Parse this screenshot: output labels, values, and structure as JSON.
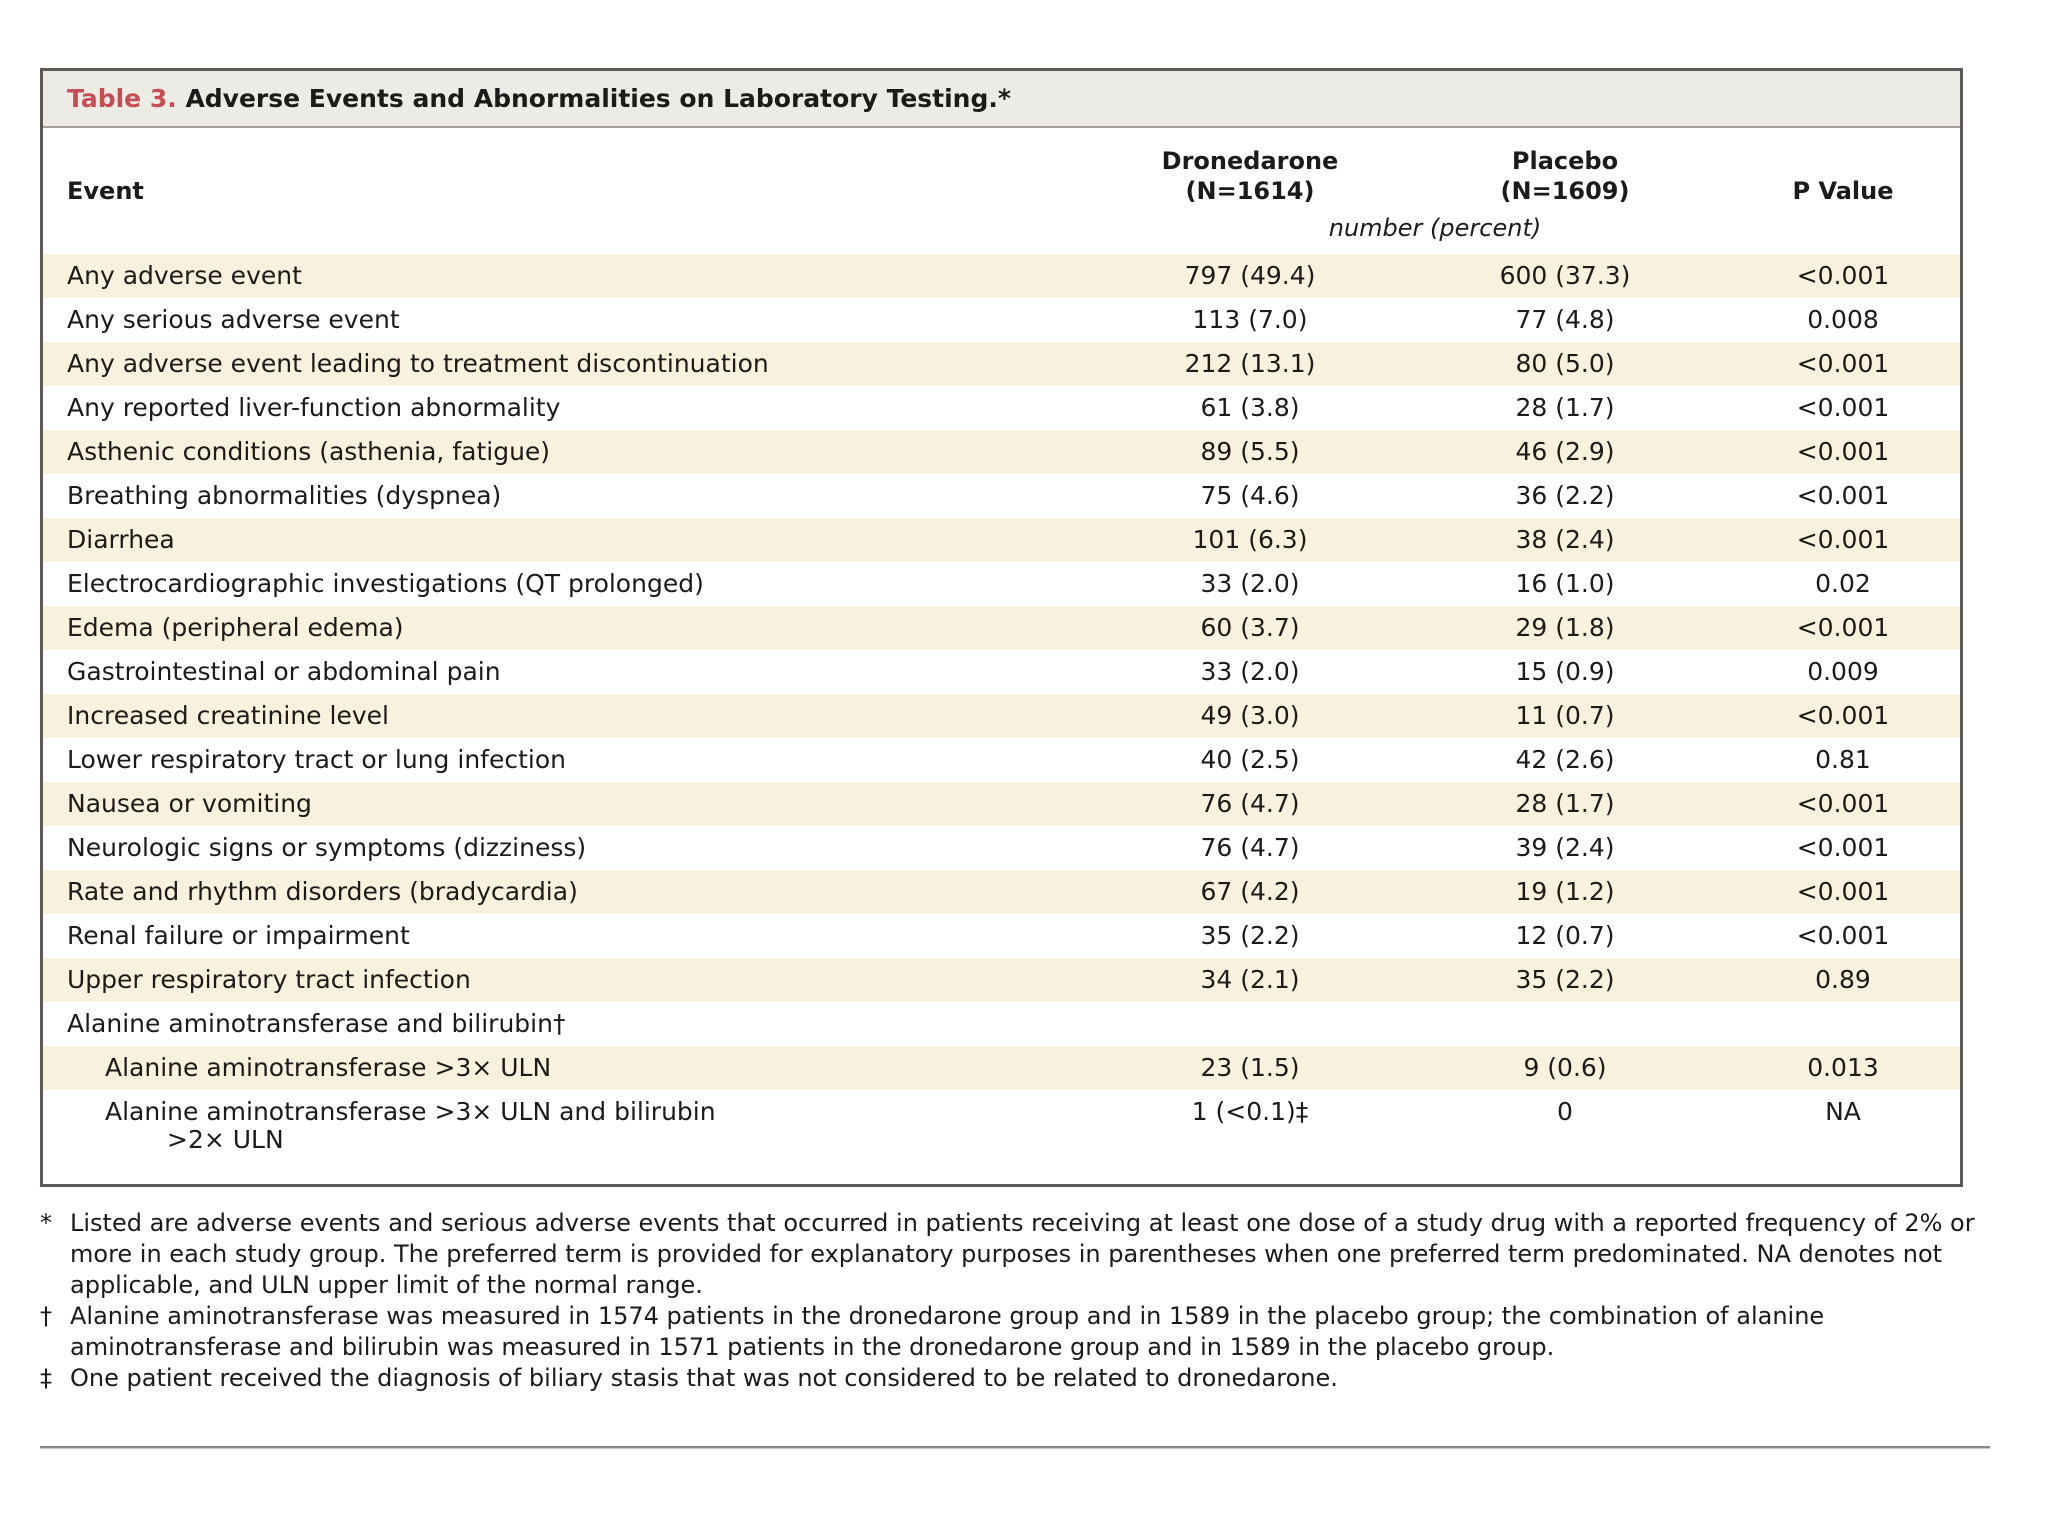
{
  "table": {
    "title_label": "Table 3.",
    "title_text": "Adverse Events and Abnormalities on Laboratory Testing.*",
    "columns": {
      "event": "Event",
      "group1_line1": "Dronedarone",
      "group1_line2": "(N=1614)",
      "group2_line1": "Placebo",
      "group2_line2": "(N=1609)",
      "pvalue": "P Value",
      "unit_note": "number (percent)"
    },
    "rows": [
      {
        "event": "Any adverse event",
        "dronedarone": "797 (49.4)",
        "placebo": "600 (37.3)",
        "p": "<0.001",
        "indent": 0
      },
      {
        "event": "Any serious adverse event",
        "dronedarone": "113 (7.0)",
        "placebo": "77 (4.8)",
        "p": "0.008",
        "indent": 0
      },
      {
        "event": "Any adverse event leading to treatment discontinuation",
        "dronedarone": "212 (13.1)",
        "placebo": "80 (5.0)",
        "p": "<0.001",
        "indent": 0
      },
      {
        "event": "Any reported liver-function abnormality",
        "dronedarone": "61 (3.8)",
        "placebo": "28 (1.7)",
        "p": "<0.001",
        "indent": 0
      },
      {
        "event": "Asthenic conditions (asthenia, fatigue)",
        "dronedarone": "89 (5.5)",
        "placebo": "46 (2.9)",
        "p": "<0.001",
        "indent": 0
      },
      {
        "event": "Breathing abnormalities (dyspnea)",
        "dronedarone": "75 (4.6)",
        "placebo": "36 (2.2)",
        "p": "<0.001",
        "indent": 0
      },
      {
        "event": "Diarrhea",
        "dronedarone": "101 (6.3)",
        "placebo": "38 (2.4)",
        "p": "<0.001",
        "indent": 0
      },
      {
        "event": "Electrocardiographic investigations (QT prolonged)",
        "dronedarone": "33 (2.0)",
        "placebo": "16 (1.0)",
        "p": "0.02",
        "indent": 0
      },
      {
        "event": "Edema (peripheral edema)",
        "dronedarone": "60 (3.7)",
        "placebo": "29 (1.8)",
        "p": "<0.001",
        "indent": 0
      },
      {
        "event": "Gastrointestinal or abdominal pain",
        "dronedarone": "33 (2.0)",
        "placebo": "15 (0.9)",
        "p": "0.009",
        "indent": 0
      },
      {
        "event": "Increased creatinine level",
        "dronedarone": "49 (3.0)",
        "placebo": "11 (0.7)",
        "p": "<0.001",
        "indent": 0
      },
      {
        "event": "Lower respiratory tract or lung infection",
        "dronedarone": "40 (2.5)",
        "placebo": "42 (2.6)",
        "p": "0.81",
        "indent": 0
      },
      {
        "event": "Nausea or vomiting",
        "dronedarone": "76 (4.7)",
        "placebo": "28 (1.7)",
        "p": "<0.001",
        "indent": 0
      },
      {
        "event": "Neurologic signs or symptoms (dizziness)",
        "dronedarone": "76 (4.7)",
        "placebo": "39 (2.4)",
        "p": "<0.001",
        "indent": 0
      },
      {
        "event": "Rate and rhythm disorders (bradycardia)",
        "dronedarone": "67 (4.2)",
        "placebo": "19 (1.2)",
        "p": "<0.001",
        "indent": 0
      },
      {
        "event": "Renal failure or impairment",
        "dronedarone": "35 (2.2)",
        "placebo": "12 (0.7)",
        "p": "<0.001",
        "indent": 0
      },
      {
        "event": "Upper respiratory tract infection",
        "dronedarone": "34 (2.1)",
        "placebo": "35 (2.2)",
        "p": "0.89",
        "indent": 0
      },
      {
        "event": "Alanine aminotransferase and bilirubin†",
        "dronedarone": "",
        "placebo": "",
        "p": "",
        "indent": 0
      },
      {
        "event": "Alanine aminotransferase >3× ULN",
        "dronedarone": "23 (1.5)",
        "placebo": "9 (0.6)",
        "p": "0.013",
        "indent": 1
      },
      {
        "event": "Alanine aminotransferase >3× ULN and bilirubin",
        "event_line2": ">2× ULN",
        "dronedarone": "1 (<0.1)‡",
        "placebo": "0",
        "p": "NA",
        "indent": 1
      }
    ]
  },
  "footnotes": [
    {
      "marker": "*",
      "text": "Listed are adverse events and serious adverse events that occurred in patients receiving at least one dose of a study drug with a reported frequency of 2% or more in each study group. The preferred term is provided for explanatory purposes in parentheses when one preferred term predominated. NA denotes not applicable, and ULN upper limit of the normal range."
    },
    {
      "marker": "†",
      "text": "Alanine aminotransferase was measured in 1574 patients in the dronedarone group and in 1589 in the placebo group; the combination of alanine aminotransferase and bilirubin was measured in 1571 patients in the dronedarone group and in 1589 in the placebo group."
    },
    {
      "marker": "‡",
      "text": "One patient received the diagnosis of biliary stasis that was not considered to be related to dronedarone."
    }
  ],
  "colors": {
    "accent_red": "#c64d53",
    "row_stripe": "#f8f1de",
    "title_bar": "#edebe5",
    "table_border": "#5e5954"
  }
}
